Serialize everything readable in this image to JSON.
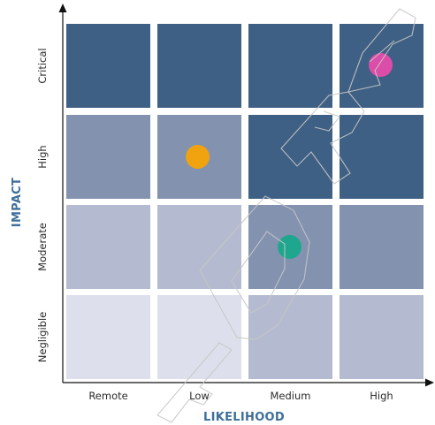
{
  "chart_data": {
    "type": "heatmap",
    "title": "",
    "xlabel": "LIKELIHOOD",
    "ylabel": "IMPACT",
    "x_categories": [
      "Remote",
      "Low",
      "Medium",
      "High"
    ],
    "y_categories": [
      "Negligible",
      "Moderate",
      "High",
      "Critical"
    ],
    "cell_levels": [
      [
        1,
        1,
        2,
        2
      ],
      [
        2,
        2,
        3,
        3
      ],
      [
        3,
        3,
        4,
        4
      ],
      [
        4,
        4,
        4,
        4
      ]
    ],
    "level_colors": {
      "1": "#dde0ec",
      "2": "#b4bbd0",
      "3": "#8292af",
      "4": "#3e6084"
    },
    "points": [
      {
        "likelihood": "Low",
        "impact": "High",
        "color": "#f0a30f"
      },
      {
        "likelihood": "Medium",
        "impact": "Moderate",
        "color": "#1fa68f"
      },
      {
        "likelihood": "High",
        "impact": "Critical",
        "color": "#db4da8"
      }
    ],
    "watermark_text": "DRAFT",
    "grid": false,
    "legend": "none"
  }
}
